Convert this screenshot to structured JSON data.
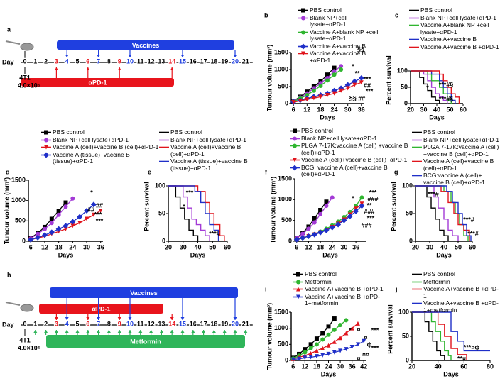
{
  "timelines": [
    {
      "panel": "a",
      "day_label": "Day",
      "days": [
        0,
        1,
        2,
        3,
        4,
        5,
        6,
        7,
        8,
        9,
        10,
        11,
        12,
        13,
        14,
        15,
        16,
        17,
        18,
        19,
        20,
        21
      ],
      "cells": "4T1",
      "cell_count": "4.0×10⁵",
      "vaccines": {
        "label": "Vaccines",
        "days": [
          4,
          7,
          10,
          15,
          20
        ]
      },
      "apd1": {
        "label": "αPD-1",
        "days": [
          3,
          6,
          9,
          14
        ]
      }
    },
    {
      "panel": "h",
      "day_label": "Day",
      "days": [
        0,
        1,
        2,
        3,
        4,
        5,
        6,
        7,
        8,
        9,
        10,
        11,
        12,
        13,
        14,
        15,
        16,
        17,
        18,
        19,
        20,
        21
      ],
      "cells": "4T1",
      "cell_count": "4.0×10⁵",
      "vaccines": {
        "label": "Vaccines",
        "days": [
          4,
          7,
          10,
          15,
          20
        ]
      },
      "apd1": {
        "label": "αPD-1",
        "days": [
          3,
          6,
          9,
          14
        ]
      },
      "metformin": {
        "label": "Metformin",
        "days": [
          1,
          2,
          3,
          4,
          5,
          6,
          7,
          8,
          9,
          10,
          11,
          12,
          13,
          14,
          15,
          16,
          17,
          18,
          19,
          20,
          21
        ]
      }
    }
  ],
  "chart_data": [
    {
      "panel": "b",
      "type": "line",
      "xlabel": "Days",
      "ylabel": "Tumour volume (mm³)",
      "x": [
        6,
        9,
        12,
        15,
        18,
        21,
        24,
        27,
        30,
        33,
        36
      ],
      "xlim": [
        5,
        37
      ],
      "xticks": [
        6,
        12,
        18,
        24,
        30,
        36
      ],
      "ylim": [
        0,
        1500
      ],
      "yticks": [
        0,
        500,
        1000,
        1500
      ],
      "series": [
        {
          "name": "PBS control",
          "color": "#000000",
          "marker": "square",
          "values": [
            80,
            200,
            350,
            500,
            650,
            850,
            1050,
            null,
            null,
            null,
            null
          ]
        },
        {
          "name": "Blank NP+cell lysate+αPD-1",
          "color": "#a33ad6",
          "marker": "circle",
          "values": [
            70,
            180,
            300,
            450,
            600,
            750,
            950,
            1100,
            null,
            null,
            null
          ]
        },
        {
          "name": "Vaccine A+blank NP +cell lysate+αPD-1",
          "color": "#2fb52f",
          "marker": "circle",
          "values": [
            60,
            150,
            250,
            380,
            520,
            680,
            850,
            1000,
            null,
            null,
            null
          ]
        },
        {
          "name": "Vaccine A+vaccine B",
          "color": "#1f2fc8",
          "marker": "diamond",
          "values": [
            50,
            100,
            150,
            200,
            250,
            300,
            380,
            450,
            550,
            650,
            750
          ]
        },
        {
          "name": "Vaccine A+vaccine B +αPD-1",
          "color": "#e0141c",
          "marker": "triangle-down",
          "values": [
            40,
            80,
            120,
            160,
            200,
            250,
            300,
            380,
            450,
            550,
            620
          ]
        }
      ],
      "annotations": [
        "§§",
        "*",
        "**",
        "***",
        "##",
        "***",
        "§§ ##"
      ]
    },
    {
      "panel": "c",
      "type": "step",
      "xlabel": "Days",
      "ylabel": "Percent survival",
      "xlim": [
        20,
        60
      ],
      "xticks": [
        20,
        30,
        40,
        50,
        60
      ],
      "ylim": [
        0,
        100
      ],
      "yticks": [
        0,
        50,
        100
      ],
      "series": [
        {
          "name": "PBS control",
          "color": "#000000",
          "x": [
            20,
            27,
            30,
            33,
            36,
            39,
            42
          ],
          "values": [
            100,
            80,
            60,
            40,
            20,
            10,
            0
          ]
        },
        {
          "name": "Blank NP+cell lysate+αPD-1",
          "color": "#a33ad6",
          "x": [
            20,
            30,
            33,
            36,
            39,
            42,
            45,
            48
          ],
          "values": [
            100,
            90,
            70,
            50,
            30,
            20,
            10,
            0
          ]
        },
        {
          "name": "Vaccine A+blank NP +cell lysate+αPD-1",
          "color": "#2fb52f",
          "x": [
            20,
            33,
            36,
            42,
            45,
            48,
            51
          ],
          "values": [
            100,
            90,
            70,
            50,
            30,
            10,
            0
          ]
        },
        {
          "name": "Vaccine A+vaccine B",
          "color": "#1f2fc8",
          "x": [
            20,
            36,
            42,
            45,
            48,
            51,
            54
          ],
          "values": [
            100,
            90,
            70,
            50,
            30,
            10,
            0
          ]
        },
        {
          "name": "Vaccine A+vaccine B +αPD-1",
          "color": "#e0141c",
          "x": [
            20,
            42,
            45,
            48,
            51,
            54,
            57
          ],
          "values": [
            100,
            90,
            70,
            50,
            30,
            20,
            0
          ]
        }
      ],
      "annotations": [
        "***#§",
        "***#§",
        "*"
      ]
    },
    {
      "panel": "d",
      "type": "line",
      "xlabel": "Days",
      "ylabel": "Tumour volume (mm³)",
      "x": [
        6,
        9,
        12,
        15,
        18,
        21,
        24,
        27,
        30,
        33,
        36
      ],
      "xlim": [
        5,
        37
      ],
      "xticks": [
        6,
        12,
        18,
        24,
        30,
        36
      ],
      "ylim": [
        0,
        1500
      ],
      "yticks": [
        0,
        500,
        1000,
        1500
      ],
      "series": [
        {
          "name": "PBS control",
          "color": "#000000",
          "marker": "square",
          "values": [
            80,
            200,
            350,
            550,
            750,
            950,
            null,
            null,
            null,
            null,
            null
          ]
        },
        {
          "name": "Blank NP+cell lysate+αPD-1",
          "color": "#a33ad6",
          "marker": "circle",
          "values": [
            70,
            180,
            300,
            450,
            650,
            850,
            1050,
            null,
            null,
            null,
            null
          ]
        },
        {
          "name": "Vaccine A (cell)+vaccine B (cell)+αPD-1",
          "color": "#e0141c",
          "marker": "triangle-down",
          "values": [
            40,
            80,
            120,
            180,
            240,
            300,
            380,
            450,
            550,
            650,
            750
          ]
        },
        {
          "name": "Vaccine A (tissue)+vaccine B (tissue)+αPD-1",
          "color": "#1f2fc8",
          "marker": "diamond",
          "values": [
            40,
            90,
            150,
            220,
            300,
            380,
            480,
            600,
            750,
            900,
            null
          ]
        }
      ],
      "annotations": [
        "*",
        "##",
        "***",
        "##",
        "***"
      ]
    },
    {
      "panel": "e",
      "type": "step",
      "xlabel": "Days",
      "ylabel": "Percent survival",
      "xlim": [
        20,
        60
      ],
      "xticks": [
        20,
        30,
        40,
        50,
        60
      ],
      "ylim": [
        0,
        100
      ],
      "yticks": [
        0,
        50,
        100
      ],
      "series": [
        {
          "name": "PBS control",
          "color": "#000000",
          "x": [
            20,
            25,
            28,
            31,
            34,
            37,
            40
          ],
          "values": [
            100,
            80,
            60,
            40,
            20,
            10,
            0
          ]
        },
        {
          "name": "Blank NP+cell lysate+αPD-1",
          "color": "#a33ad6",
          "x": [
            20,
            30,
            33,
            36,
            39,
            42,
            45,
            48
          ],
          "values": [
            100,
            80,
            60,
            40,
            30,
            20,
            10,
            0
          ]
        },
        {
          "name": "Vaccine A (cell)+vaccine B (cell)+αPD-1",
          "color": "#e0141c",
          "x": [
            20,
            40,
            45,
            48,
            51,
            55,
            58
          ],
          "values": [
            100,
            90,
            70,
            50,
            30,
            10,
            0
          ]
        },
        {
          "name": "Vaccine A (tissue)+vaccine B (tissue)+αPD-1",
          "color": "#1f2fc8",
          "x": [
            20,
            38,
            42,
            45,
            48,
            51,
            54
          ],
          "values": [
            100,
            90,
            70,
            50,
            30,
            20,
            0
          ]
        }
      ],
      "annotations": [
        "***",
        "*",
        "***#"
      ]
    },
    {
      "panel": "f",
      "type": "line",
      "xlabel": "Days",
      "ylabel": "Tumour volume (mm³)",
      "x": [
        6,
        9,
        12,
        15,
        18,
        21,
        24,
        27,
        30,
        33,
        36,
        39
      ],
      "xlim": [
        5,
        41
      ],
      "xticks": [
        6,
        12,
        18,
        24,
        30,
        36
      ],
      "ylim": [
        0,
        1500
      ],
      "yticks": [
        0,
        500,
        1000,
        1500
      ],
      "series": [
        {
          "name": "PBS control",
          "color": "#000000",
          "marker": "square",
          "values": [
            80,
            200,
            350,
            550,
            750,
            950,
            null,
            null,
            null,
            null,
            null,
            null
          ]
        },
        {
          "name": "Blank NP+cell lysate+αPD-1",
          "color": "#a33ad6",
          "marker": "circle",
          "values": [
            70,
            180,
            300,
            450,
            650,
            850,
            1050,
            null,
            null,
            null,
            null,
            null
          ]
        },
        {
          "name": "PLGA 7-17K:vaccine A (cell) +vaccine B (cell)+αPD-1",
          "color": "#2fb52f",
          "marker": "circle",
          "values": [
            40,
            80,
            120,
            170,
            230,
            300,
            380,
            470,
            580,
            700,
            850,
            1050
          ]
        },
        {
          "name": "Vaccine A (cell)+vaccine B (cell)+αPD-1",
          "color": "#e0141c",
          "marker": "triangle-down",
          "values": [
            40,
            80,
            120,
            160,
            210,
            270,
            340,
            420,
            520,
            640,
            780,
            900
          ]
        },
        {
          "name": "BCG: vaccine A (cell)+vaccine B (cell)+αPD-1",
          "color": "#1f2fc8",
          "marker": "diamond",
          "values": [
            40,
            80,
            120,
            160,
            210,
            260,
            330,
            400,
            500,
            600,
            720,
            850
          ]
        }
      ],
      "annotations": [
        "*",
        "***",
        "###",
        "**",
        "###",
        "***",
        "###"
      ]
    },
    {
      "panel": "g",
      "type": "step",
      "xlabel": "Days",
      "ylabel": "Percent survival",
      "xlim": [
        20,
        60
      ],
      "xticks": [
        20,
        30,
        40,
        50,
        60
      ],
      "ylim": [
        0,
        100
      ],
      "yticks": [
        0,
        50,
        100
      ],
      "series": [
        {
          "name": "PBS control",
          "color": "#000000",
          "x": [
            20,
            28,
            31,
            34,
            37,
            40,
            43
          ],
          "values": [
            100,
            80,
            60,
            40,
            20,
            10,
            0
          ]
        },
        {
          "name": "Blank NP+cell lysate+αPD-1",
          "color": "#a33ad6",
          "x": [
            20,
            33,
            36,
            40,
            43,
            46,
            50
          ],
          "values": [
            100,
            80,
            60,
            40,
            20,
            10,
            0
          ]
        },
        {
          "name": "PLGA 7-17K:vaccine A (cell) +vaccine B (cell)+αPD-1",
          "color": "#2fb52f",
          "x": [
            20,
            40,
            45,
            48,
            51,
            54,
            57
          ],
          "values": [
            100,
            90,
            70,
            50,
            30,
            10,
            0
          ]
        },
        {
          "name": "Vaccine A (cell)+vaccine B (cell)+αPD-1",
          "color": "#e0141c",
          "x": [
            20,
            38,
            43,
            47,
            50,
            54,
            58
          ],
          "values": [
            100,
            90,
            70,
            50,
            30,
            20,
            0
          ]
        },
        {
          "name": "BCG:vaccine A (cell)+ vaccine B (cell)+αPD-1",
          "color": "#1f2fc8",
          "x": [
            20,
            42,
            46,
            50,
            53,
            56,
            59
          ],
          "values": [
            100,
            90,
            70,
            50,
            30,
            10,
            0
          ]
        }
      ],
      "annotations": [
        "***#",
        "***#",
        "***#"
      ]
    },
    {
      "panel": "i",
      "type": "line",
      "xlabel": "Days",
      "ylabel": "Tumour volume (mm³)",
      "x": [
        6,
        9,
        12,
        15,
        18,
        21,
        24,
        27,
        30,
        33,
        36,
        39,
        42
      ],
      "xlim": [
        5,
        43
      ],
      "xticks": [
        6,
        12,
        18,
        24,
        30,
        36,
        42
      ],
      "ylim": [
        0,
        1500
      ],
      "yticks": [
        0,
        500,
        1000,
        1500
      ],
      "series": [
        {
          "name": "PBS control",
          "color": "#000000",
          "marker": "square",
          "values": [
            80,
            200,
            350,
            500,
            680,
            850,
            1050,
            1300,
            null,
            null,
            null,
            null,
            null
          ]
        },
        {
          "name": "Metformin",
          "color": "#2fb52f",
          "marker": "circle",
          "values": [
            60,
            150,
            250,
            380,
            500,
            650,
            800,
            950,
            1100,
            1250,
            null,
            null,
            null
          ]
        },
        {
          "name": "Vaccine A+vaccine B +αPD-1",
          "color": "#e0141c",
          "marker": "triangle",
          "values": [
            50,
            100,
            150,
            220,
            300,
            380,
            470,
            580,
            700,
            850,
            1000,
            1150,
            null
          ]
        },
        {
          "name": "Vaccine A+vaccine B +αPD-1+metformin",
          "color": "#1f2fc8",
          "marker": "triangle-down",
          "values": [
            30,
            50,
            80,
            100,
            130,
            160,
            200,
            250,
            300,
            350,
            420,
            500,
            600
          ]
        }
      ],
      "annotations": [
        "*",
        "¤",
        "***",
        "¤",
        "ϕ",
        "***",
        "¤¤",
        "¤"
      ]
    },
    {
      "panel": "j",
      "type": "step",
      "xlabel": "Days",
      "ylabel": "Percent survival",
      "xlim": [
        20,
        80
      ],
      "xticks": [
        20,
        40,
        60,
        80
      ],
      "ylim": [
        0,
        100
      ],
      "yticks": [
        0,
        50,
        100
      ],
      "series": [
        {
          "name": "PBS control",
          "color": "#000000",
          "x": [
            20,
            30,
            33,
            36,
            39,
            42,
            45
          ],
          "values": [
            100,
            80,
            60,
            40,
            20,
            10,
            0
          ]
        },
        {
          "name": "Metformin",
          "color": "#2fb52f",
          "x": [
            20,
            35,
            38,
            42,
            45,
            48,
            50
          ],
          "values": [
            100,
            80,
            60,
            40,
            20,
            10,
            0
          ]
        },
        {
          "name": "Vaccine A+vaccine B +αPD-1",
          "color": "#e0141c",
          "x": [
            20,
            40,
            45,
            50,
            55,
            62
          ],
          "values": [
            100,
            75,
            50,
            25,
            12,
            0
          ]
        },
        {
          "name": "Vaccine A+vaccine B +αPD-1+metformin",
          "color": "#1f2fc8",
          "x": [
            20,
            50,
            55,
            60,
            80
          ],
          "values": [
            100,
            60,
            40,
            20,
            20
          ]
        }
      ],
      "annotations": [
        "***¤ϕ",
        "**¤"
      ]
    }
  ]
}
